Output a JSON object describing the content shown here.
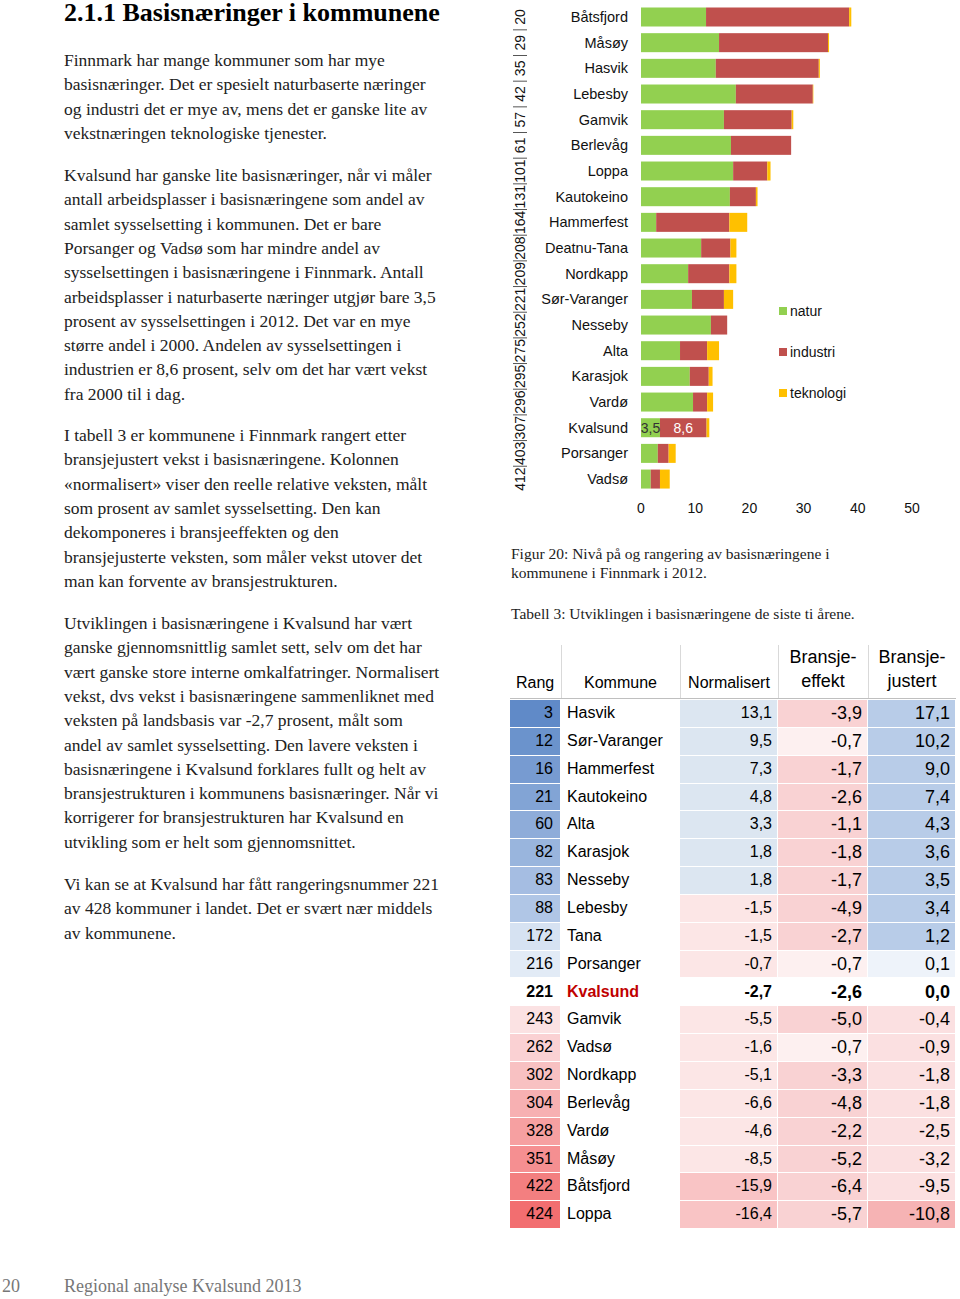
{
  "heading": "2.1.1 Basisnæringer i kommunene",
  "paragraphs": [
    [
      "Finnmark har mange kommuner som har mye",
      "basisnæringer. Det er spesielt naturbaserte næringer",
      "og industri det er mye av, mens det er ganske lite av",
      "vekstnæringen teknologiske tjenester."
    ],
    [
      "Kvalsund har ganske lite basisnæringer, når vi måler",
      "antall arbeidsplasser i basisnæringene som andel av",
      "samlet sysselsetting i kommunen. Det er bare",
      "Porsanger og Vadsø som har mindre andel av",
      "sysselsettingen i basisnæringene i Finnmark. Antall",
      "arbeidsplasser i naturbaserte næringer utgjør bare 3,5",
      "prosent av sysselsettingen i 2012. Det var en mye",
      "større andel i 2000. Andelen av sysselsettingen i",
      "industrien er 8,6 prosent, selv om det har vært vekst",
      "fra 2000 til i dag."
    ],
    [
      "I tabell 3 er kommunene i Finnmark rangert etter",
      "bransjejustert vekst i basisnæringene. Kolonnen",
      "«normalisert» viser den reelle relative veksten, målt",
      "som prosent av samlet sysselsetting. Den kan",
      "dekomponeres i bransjeeffekten og den",
      "bransjejusterte veksten, som måler vekst utover det",
      "man kan forvente av bransjestrukturen."
    ],
    [
      "Utviklingen i basisnæringene i Kvalsund har vært",
      "ganske gjennomsnittlig samlet sett, selv om det har",
      "vært ganske store interne omkalfatringer. Normalisert",
      "vekst, dvs vekst i basisnæringene sammenliknet med",
      "veksten på landsbasis var -2,7 prosent, målt som",
      "andel av samlet sysselsetting. Den lavere veksten i",
      "basisnæringene i Kvalsund forklares fullt og helt av",
      "bransjestrukturen i kommunens basisnæringer. Når vi",
      "korrigerer for bransjestrukturen har Kvalsund en",
      "utvikling som er helt som gjennomsnittet."
    ],
    [
      "Vi kan se at Kvalsund har fått rangeringsnummer 221",
      "av 428 kommuner i landet. Det er svært nær middels",
      "av kommunene."
    ]
  ],
  "chart_data": {
    "type": "bar",
    "orientation": "horizontal",
    "stacked": true,
    "categories": [
      "Båtsfjord",
      "Måsøy",
      "Hasvik",
      "Lebesby",
      "Gamvik",
      "Berlevåg",
      "Loppa",
      "Kautokeino",
      "Hammerfest",
      "Deatnu-Tana",
      "Nordkapp",
      "Sør-Varanger",
      "Nesseby",
      "Alta",
      "Karasjok",
      "Vardø",
      "Kvalsund",
      "Porsanger",
      "Vadsø"
    ],
    "ranks": [
      20,
      29,
      35,
      42,
      57,
      61,
      101,
      131,
      164,
      208,
      209,
      221,
      252,
      275,
      295,
      296,
      307,
      403,
      412
    ],
    "series": [
      {
        "name": "natur",
        "color": "#92d050",
        "values": [
          12.0,
          14.4,
          13.8,
          17.5,
          15.3,
          16.6,
          17.0,
          16.4,
          2.8,
          11.1,
          8.7,
          9.4,
          12.9,
          7.2,
          9.0,
          9.6,
          3.5,
          3.1,
          1.8
        ],
        "value_labels": [
          null,
          null,
          null,
          null,
          null,
          null,
          null,
          null,
          null,
          null,
          null,
          null,
          null,
          null,
          null,
          null,
          "3,5",
          null,
          null
        ]
      },
      {
        "name": "industri",
        "color": "#c0504d",
        "values": [
          26.4,
          20.1,
          19.0,
          14.2,
          12.5,
          11.1,
          6.3,
          4.8,
          13.5,
          5.4,
          7.6,
          5.9,
          3.0,
          5.0,
          3.5,
          2.6,
          8.6,
          2.0,
          1.7
        ],
        "value_labels": [
          null,
          null,
          null,
          null,
          null,
          null,
          null,
          null,
          null,
          null,
          null,
          null,
          null,
          null,
          null,
          null,
          "8,6",
          null,
          null
        ]
      },
      {
        "name": "teknologi",
        "color": "#ffc000",
        "values": [
          0.4,
          0.2,
          0.2,
          0.1,
          0.3,
          0.0,
          0.6,
          0.3,
          3.3,
          1.1,
          1.3,
          1.7,
          0.0,
          2.2,
          0.7,
          1.1,
          0.5,
          1.3,
          1.8
        ]
      }
    ],
    "xlim": [
      0,
      50
    ],
    "xticks": [
      0,
      10,
      20,
      30,
      40,
      50
    ],
    "legend": "right",
    "data_labels": true,
    "grid": false
  },
  "figure_caption": [
    "Figur 20: Nivå på og rangering av basisnæringene i",
    "kommunene i Finnmark i 2012."
  ],
  "table": {
    "caption": "Tabell 3: Utviklingen i basisnæringene de siste ti årene.",
    "header": [
      "Rang",
      "Kommune",
      "Normalisert",
      [
        "Bransje-",
        "effekt"
      ],
      [
        "Bransje-",
        "justert"
      ]
    ],
    "rows": [
      [
        "3",
        "Hasvik",
        "13,1",
        "-3,9",
        "17,1"
      ],
      [
        "12",
        "Sør-Varanger",
        "9,5",
        "-0,7",
        "10,2"
      ],
      [
        "16",
        "Hammerfest",
        "7,3",
        "-1,7",
        "9,0"
      ],
      [
        "21",
        "Kautokeino",
        "4,8",
        "-2,6",
        "7,4"
      ],
      [
        "60",
        "Alta",
        "3,3",
        "-1,1",
        "4,3"
      ],
      [
        "82",
        "Karasjok",
        "1,8",
        "-1,8",
        "3,6"
      ],
      [
        "83",
        "Nesseby",
        "1,8",
        "-1,7",
        "3,5"
      ],
      [
        "88",
        "Lebesby",
        "-1,5",
        "-4,9",
        "3,4"
      ],
      [
        "172",
        "Tana",
        "-1,5",
        "-2,7",
        "1,2"
      ],
      [
        "216",
        "Porsanger",
        "-0,7",
        "-0,7",
        "0,1"
      ],
      [
        "221",
        "Kvalsund",
        "-2,7",
        "-2,6",
        "0,0"
      ],
      [
        "243",
        "Gamvik",
        "-5,5",
        "-5,0",
        "-0,4"
      ],
      [
        "262",
        "Vadsø",
        "-1,6",
        "-0,7",
        "-0,9"
      ],
      [
        "302",
        "Nordkapp",
        "-5,1",
        "-3,3",
        "-1,8"
      ],
      [
        "304",
        "Berlevåg",
        "-6,6",
        "-4,8",
        "-1,8"
      ],
      [
        "328",
        "Vardø",
        "-4,6",
        "-2,2",
        "-2,5"
      ],
      [
        "351",
        "Måsøy",
        "-8,5",
        "-5,2",
        "-3,2"
      ],
      [
        "422",
        "Båtsfjord",
        "-15,9",
        "-6,4",
        "-9,5"
      ],
      [
        "424",
        "Loppa",
        "-16,4",
        "-5,7",
        "-10,8"
      ]
    ],
    "highlight_row": 10
  },
  "footer": {
    "page_number": "20",
    "text": "Regional analyse Kvalsund 2013"
  }
}
